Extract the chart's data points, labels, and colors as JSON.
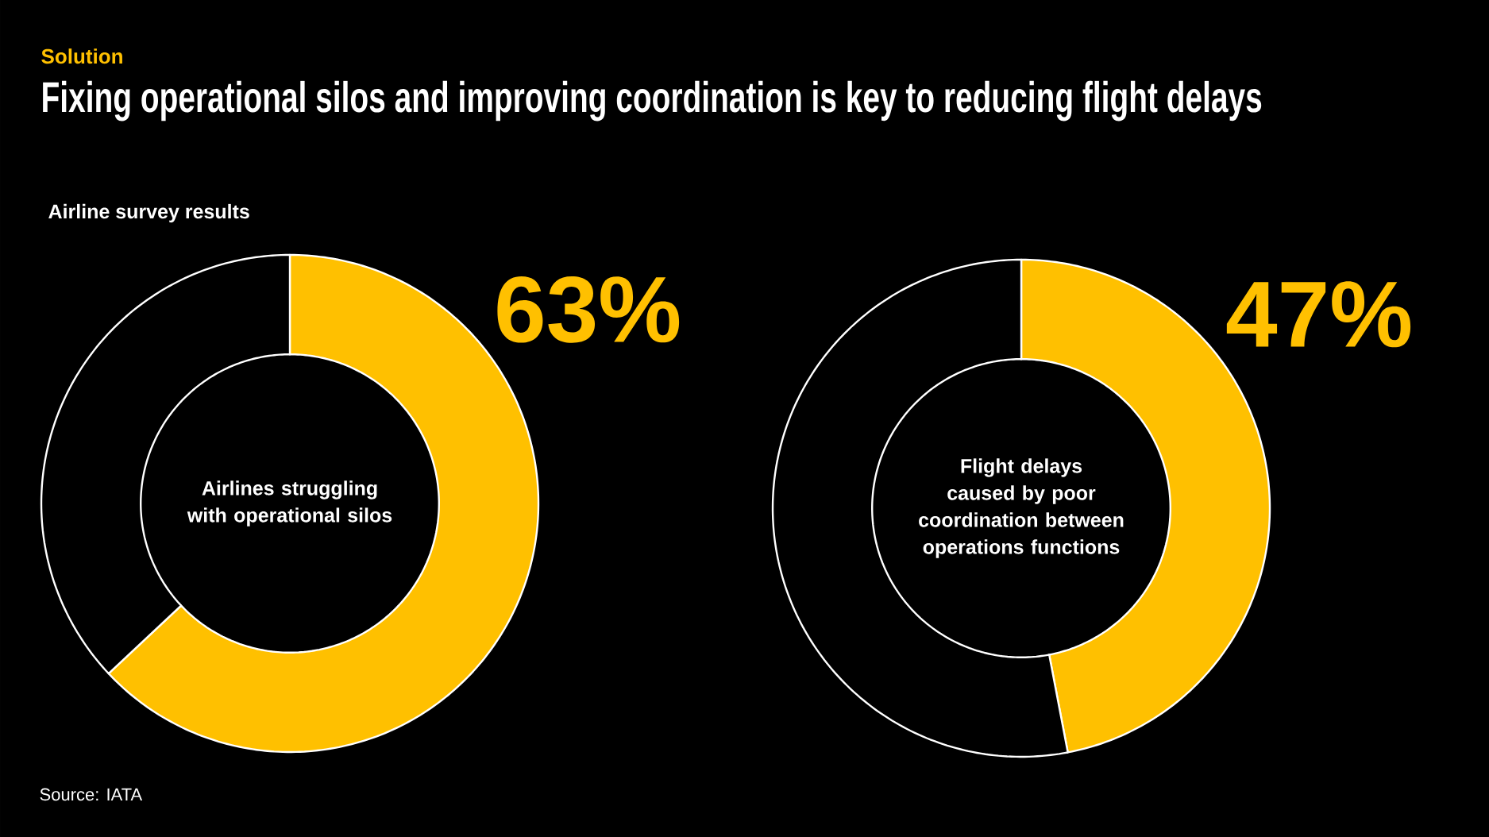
{
  "chart_data": [
    {
      "type": "donut",
      "title": "Fixing operational silos and improving coordination is key to reducing flight delays",
      "subtitle": "Airlines struggling with operational silos",
      "annotations": [
        "Solution",
        "Airline survey results",
        "Source: IATA"
      ],
      "categories": [
        null,
        null
      ],
      "values": [
        63,
        37
      ],
      "colors": [
        "#ffc000",
        "#000000"
      ],
      "value_labels": [
        "63%",
        null
      ]
    },
    {
      "type": "donut",
      "subtitle": "Flight delays caused by poor coordination between operations functions",
      "categories": [
        null,
        null
      ],
      "values": [
        47,
        53
      ],
      "colors": [
        "#ffc000",
        "#000000"
      ],
      "value_labels": [
        "47%",
        null
      ]
    }
  ]
}
